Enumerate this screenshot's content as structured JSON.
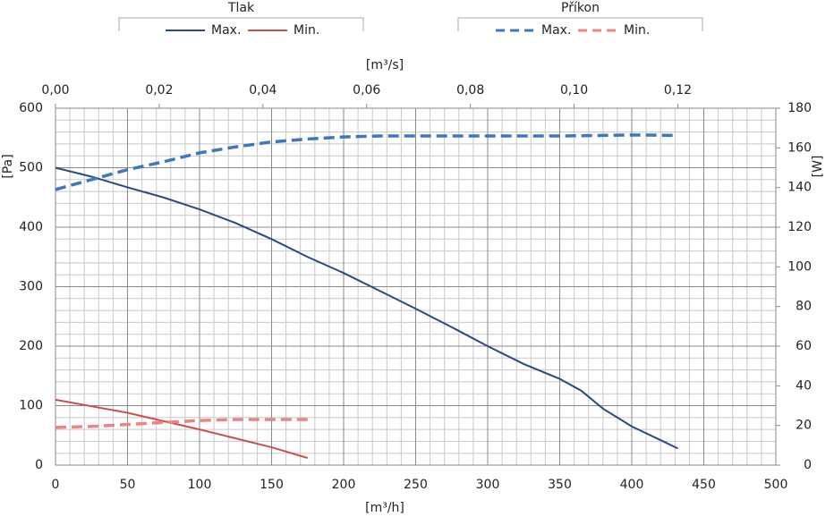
{
  "chart_data": {
    "type": "line",
    "xlabel": "[m³/h]",
    "x2label": "[m³/s]",
    "ylabel": "[Pa]",
    "y2label": "[W]",
    "xlim": [
      0,
      500
    ],
    "xticks": [
      0,
      50,
      100,
      150,
      200,
      250,
      300,
      350,
      400,
      450,
      500
    ],
    "x2lim": [
      0,
      0.13889
    ],
    "x2ticks": [
      {
        "value": 0,
        "label": "0,00"
      },
      {
        "value": 0.02,
        "label": "0,02"
      },
      {
        "value": 0.04,
        "label": "0,04"
      },
      {
        "value": 0.06,
        "label": "0,06"
      },
      {
        "value": 0.08,
        "label": "0,08"
      },
      {
        "value": 0.1,
        "label": "0,10"
      },
      {
        "value": 0.12,
        "label": "0,12"
      }
    ],
    "ylim": [
      0,
      600
    ],
    "yticks": [
      0,
      100,
      200,
      300,
      400,
      500,
      600
    ],
    "y2lim": [
      0,
      180
    ],
    "y2ticks": [
      0,
      20,
      40,
      60,
      80,
      100,
      120,
      140,
      160,
      180
    ],
    "grid": true,
    "minor_grid_step": [
      10,
      20
    ],
    "legend_groups": [
      "Tlak",
      "Příkon"
    ],
    "series": [
      {
        "name": "Max.",
        "group": 0,
        "color": "#2a4a84",
        "dashed": false,
        "x": [
          0,
          25,
          50,
          75,
          100,
          125,
          150,
          175,
          200,
          225,
          250,
          275,
          300,
          325,
          350,
          365,
          380,
          400,
          420,
          432
        ],
        "values": [
          500,
          485,
          467,
          450,
          430,
          407,
          380,
          350,
          323,
          293,
          263,
          232,
          200,
          170,
          145,
          125,
          95,
          65,
          42,
          28
        ]
      },
      {
        "name": "Min.",
        "group": 0,
        "color": "#c9504c",
        "dashed": false,
        "x": [
          0,
          50,
          100,
          150,
          175
        ],
        "values": [
          110,
          88,
          60,
          30,
          12
        ]
      },
      {
        "name": "Max.",
        "group": 1,
        "color": "#3c78c0",
        "dashed": true,
        "axis": "y2",
        "x": [
          0,
          25,
          50,
          75,
          100,
          125,
          150,
          175,
          200,
          225,
          250,
          300,
          350,
          400,
          432
        ],
        "values": [
          139,
          144,
          149,
          153,
          157.5,
          160.5,
          163,
          164.5,
          165.5,
          166,
          166,
          166,
          166,
          166.5,
          166.3
        ]
      },
      {
        "name": "Min.",
        "group": 1,
        "color": "#ea8585",
        "dashed": true,
        "axis": "y2",
        "x": [
          0,
          25,
          50,
          75,
          100,
          125,
          150,
          175
        ],
        "values": [
          19,
          19.5,
          20.5,
          21.5,
          22.5,
          23,
          23,
          23
        ]
      }
    ]
  }
}
